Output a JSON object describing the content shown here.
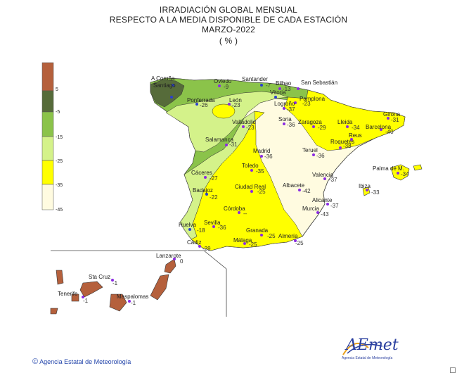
{
  "header": {
    "line1": "IRRADIACIÓN  GLOBAL MENSUAL",
    "line2": "RESPECTO  A LA MEDIA DISPONIBLE DE CADA ESTACIÓN",
    "line3": "MARZO-2022",
    "line4": "( % )"
  },
  "legend": {
    "labels": [
      "5",
      "-5",
      "-15",
      "-25",
      "-35",
      "-45"
    ],
    "colors": [
      "#b5603c",
      "#566b3a",
      "#8bc34a",
      "#d4f28a",
      "#ffff00",
      "#fffbe0"
    ]
  },
  "stations": [
    {
      "name": "A Coruña",
      "value": ""
    },
    {
      "name": "Santiago",
      "value": ""
    },
    {
      "name": "Oviedo",
      "value": "-9"
    },
    {
      "name": "Santander",
      "value": "-7"
    },
    {
      "name": "Bilbao",
      "value": "-13"
    },
    {
      "name": "San Sebastián",
      "value": ""
    },
    {
      "name": "Vitoria",
      "value": ""
    },
    {
      "name": "Pamplona",
      "value": "-23"
    },
    {
      "name": "Ponferrada",
      "value": "-26"
    },
    {
      "name": "León",
      "value": "-23"
    },
    {
      "name": "Logroño",
      "value": "-37"
    },
    {
      "name": "Girona",
      "value": "-31"
    },
    {
      "name": "Valladolid",
      "value": "-23"
    },
    {
      "name": "Soria",
      "value": "-36"
    },
    {
      "name": "Zaragoza",
      "value": "-29"
    },
    {
      "name": "Lleida",
      "value": "-34"
    },
    {
      "name": "Barcelona",
      "value": "-40"
    },
    {
      "name": "Reus",
      "value": ""
    },
    {
      "name": "Roquetes",
      "value": "-38"
    },
    {
      "name": "Salamanca",
      "value": "-31"
    },
    {
      "name": "Madrid",
      "value": "-36"
    },
    {
      "name": "Teruel",
      "value": "-36"
    },
    {
      "name": "Palma de M.",
      "value": "-34"
    },
    {
      "name": "Toledo",
      "value": "-35"
    },
    {
      "name": "Cáceres",
      "value": "-27"
    },
    {
      "name": "Valencia",
      "value": "-37"
    },
    {
      "name": "Ibiza",
      "value": "-33"
    },
    {
      "name": "Badajoz",
      "value": "-22"
    },
    {
      "name": "Ciudad Real",
      "value": "-25"
    },
    {
      "name": "Albacete",
      "value": "-42"
    },
    {
      "name": "Alicante",
      "value": "-37"
    },
    {
      "name": "Córdoba",
      "value": "--"
    },
    {
      "name": "Murcia",
      "value": "-43"
    },
    {
      "name": "Sevilla",
      "value": "-36"
    },
    {
      "name": "Huelva",
      "value": "-18"
    },
    {
      "name": "Granada",
      "value": "-25"
    },
    {
      "name": "Almería",
      "value": "-25"
    },
    {
      "name": "Málaga",
      "value": "-25"
    },
    {
      "name": "Cádiz",
      "value": "-29"
    },
    {
      "name": "Lanzarote",
      "value": "0"
    },
    {
      "name": "Sta Cruz",
      "value": "-1"
    },
    {
      "name": "Tenerife",
      "value": "-1"
    },
    {
      "name": "Maspalomas",
      "value": "-1"
    }
  ],
  "footer": {
    "copyright_symbol": "©",
    "agency": "Agencia Estatal de Meteorología"
  },
  "logo": {
    "brand": "AEmet",
    "subtitle": "Agencia Estatal de Meteorología"
  }
}
